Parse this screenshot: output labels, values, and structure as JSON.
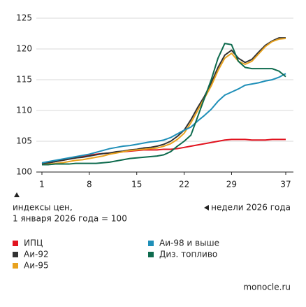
{
  "chart_data": {
    "type": "line",
    "y_label": [
      "индексы цен,",
      "1 января 2026 года = 100"
    ],
    "x_label": "недели 2026 года",
    "source": "monocle.ru",
    "x": [
      1,
      2,
      3,
      4,
      5,
      6,
      7,
      8,
      9,
      10,
      11,
      12,
      13,
      14,
      15,
      16,
      17,
      18,
      19,
      20,
      21,
      22,
      23,
      24,
      25,
      26,
      27,
      28,
      29,
      30,
      31,
      32,
      33,
      34,
      35,
      36,
      37
    ],
    "xlim": [
      1,
      37
    ],
    "xticks": [
      1,
      8,
      15,
      22,
      29,
      37
    ],
    "ylim": [
      100,
      125
    ],
    "yticks": [
      100,
      105,
      110,
      115,
      120,
      125
    ],
    "grid": true,
    "series": [
      {
        "name": "ИПЦ",
        "color": "#e1131f",
        "values": [
          101.3,
          101.5,
          101.7,
          101.9,
          102.1,
          102.3,
          102.5,
          102.7,
          102.9,
          103.0,
          103.1,
          103.2,
          103.3,
          103.4,
          103.5,
          103.6,
          103.6,
          103.6,
          103.7,
          103.7,
          103.8,
          104.0,
          104.2,
          104.4,
          104.6,
          104.8,
          105.0,
          105.2,
          105.3,
          105.3,
          105.3,
          105.2,
          105.2,
          105.2,
          105.3,
          105.3,
          105.3
        ]
      },
      {
        "name": "Аи-92",
        "color": "#333333",
        "values": [
          101.3,
          101.5,
          101.7,
          101.9,
          102.1,
          102.3,
          102.4,
          102.6,
          102.8,
          103.0,
          103.1,
          103.3,
          103.4,
          103.6,
          103.7,
          103.9,
          104.0,
          104.2,
          104.5,
          105.0,
          105.8,
          106.8,
          108.5,
          110.5,
          112.3,
          114.5,
          117.0,
          119.0,
          119.8,
          118.5,
          117.8,
          118.3,
          119.5,
          120.6,
          121.3,
          121.8,
          121.8
        ]
      },
      {
        "name": "Аи-95",
        "color": "#e8a21f",
        "values": [
          101.2,
          101.3,
          101.4,
          101.5,
          101.7,
          101.9,
          102.0,
          102.2,
          102.4,
          102.6,
          102.9,
          103.1,
          103.3,
          103.5,
          103.6,
          103.7,
          103.8,
          103.9,
          104.2,
          104.6,
          105.3,
          106.3,
          108.0,
          110.0,
          112.0,
          114.0,
          116.5,
          118.5,
          119.3,
          118.0,
          117.5,
          118.0,
          119.2,
          120.4,
          121.2,
          121.6,
          121.7
        ]
      },
      {
        "name": "Аи-98 и выше",
        "color": "#1f8fb8",
        "values": [
          101.5,
          101.7,
          101.9,
          102.1,
          102.3,
          102.5,
          102.7,
          102.9,
          103.2,
          103.5,
          103.8,
          104.0,
          104.2,
          104.3,
          104.5,
          104.7,
          104.9,
          105.0,
          105.2,
          105.6,
          106.2,
          106.8,
          107.3,
          108.3,
          109.2,
          110.2,
          111.5,
          112.5,
          113.0,
          113.5,
          114.1,
          114.3,
          114.5,
          114.8,
          115.0,
          115.4,
          116.0
        ]
      },
      {
        "name": "Диз. топливо",
        "color": "#0e6b4e",
        "values": [
          101.2,
          101.2,
          101.3,
          101.3,
          101.3,
          101.4,
          101.4,
          101.4,
          101.4,
          101.5,
          101.6,
          101.8,
          102.0,
          102.2,
          102.3,
          102.4,
          102.5,
          102.6,
          102.8,
          103.3,
          104.2,
          105.0,
          106.0,
          109.0,
          112.0,
          115.0,
          118.5,
          120.9,
          120.7,
          118.0,
          117.0,
          116.8,
          116.8,
          116.8,
          116.8,
          116.4,
          115.5
        ]
      }
    ]
  }
}
